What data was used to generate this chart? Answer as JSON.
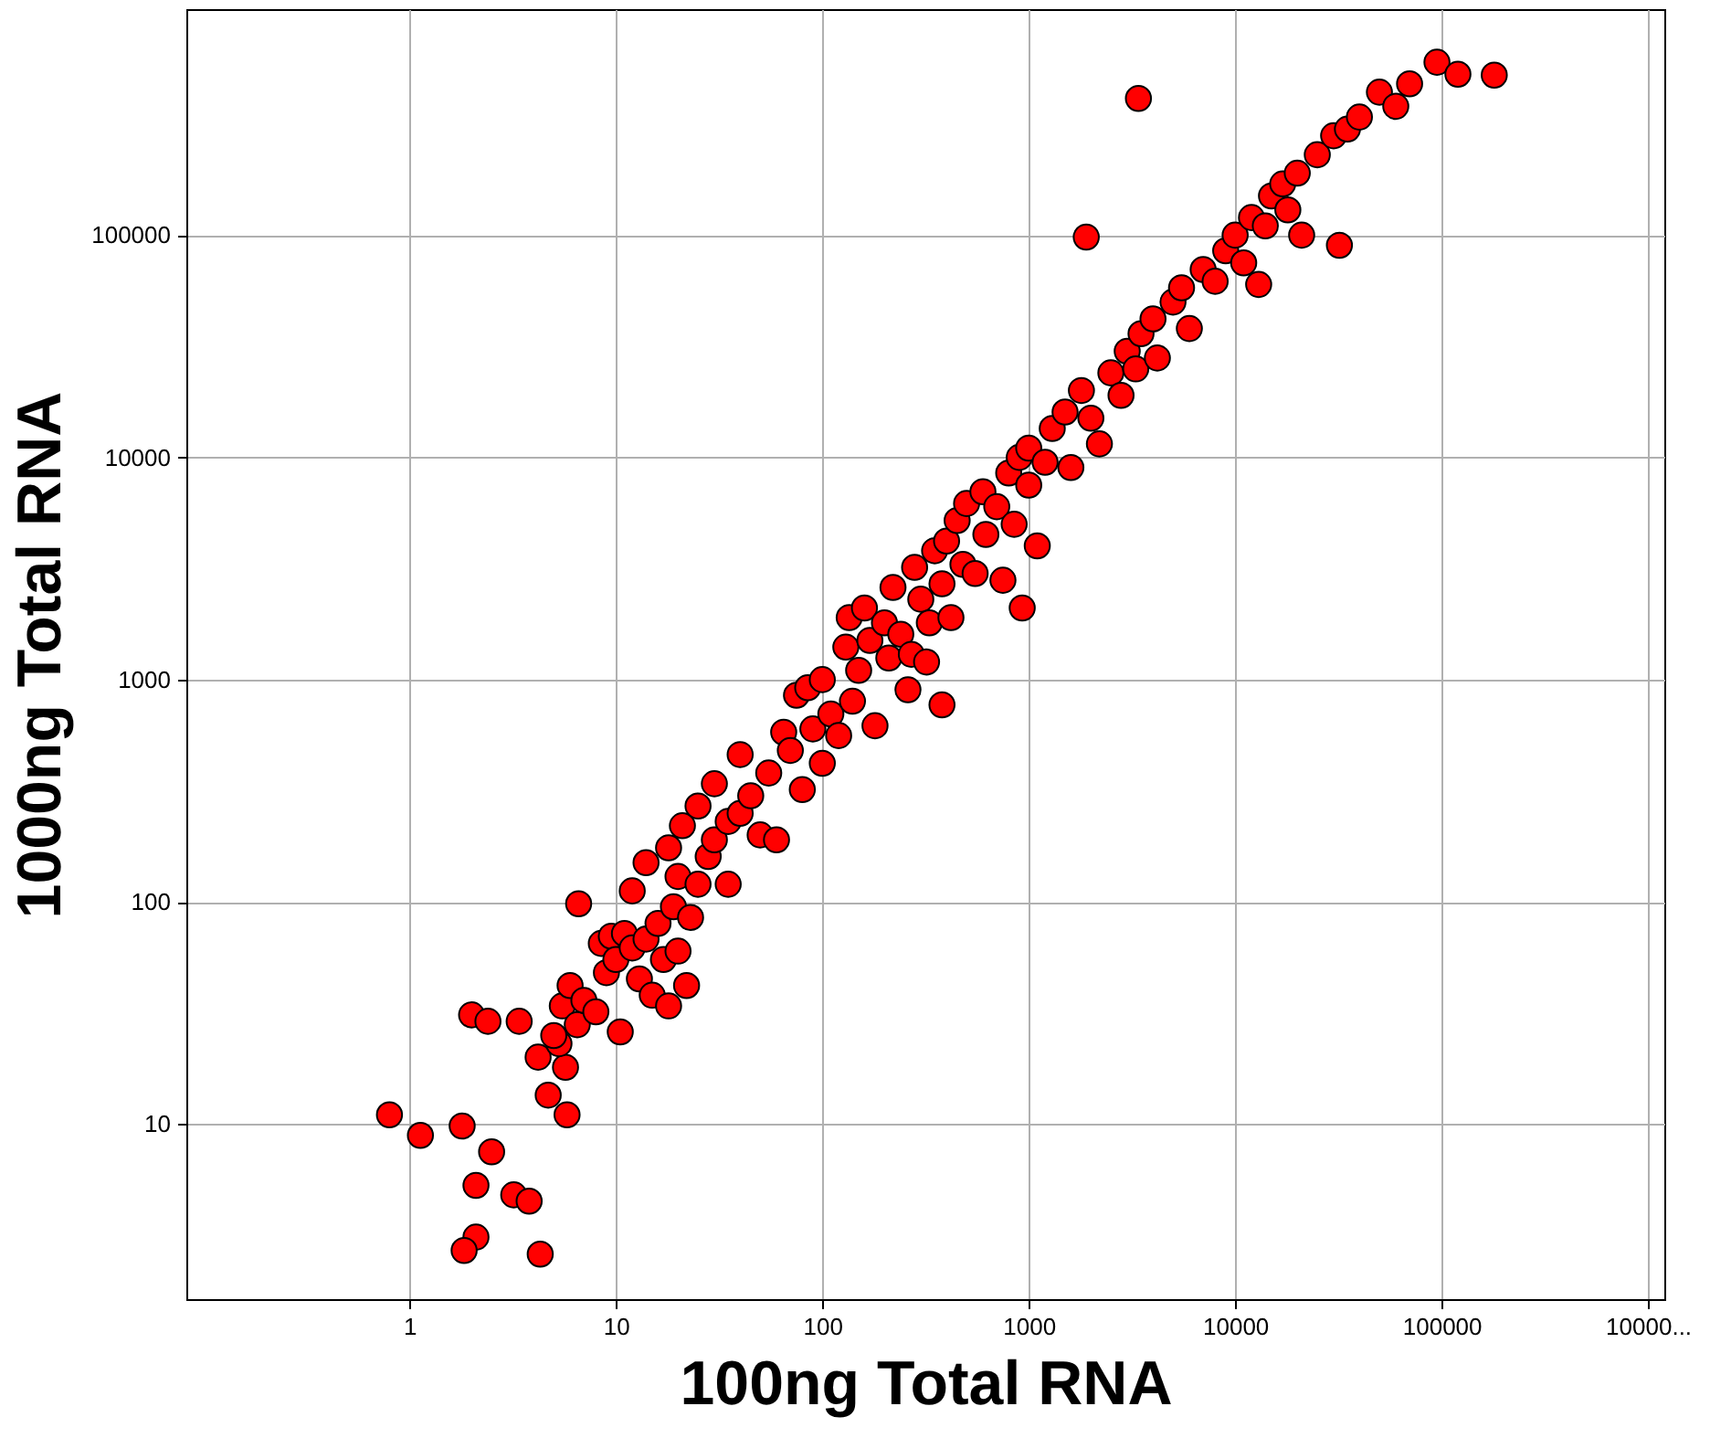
{
  "chart_data": {
    "type": "scatter",
    "xlabel": "100ng Total RNA",
    "ylabel": "1000ng Total RNA",
    "log": "xy",
    "grid": true,
    "marker": "circle",
    "xlim": [
      0.083,
      1200000
    ],
    "ylim": [
      1.63,
      1040000
    ],
    "xticks": [
      1,
      10,
      100,
      1000,
      10000,
      100000,
      {
        "value": 1000000,
        "label": "10000..."
      }
    ],
    "yticks": [
      10,
      100,
      1000,
      10000,
      100000
    ],
    "series": [
      {
        "color": "#ff0000",
        "x": [
          0.8,
          1.13,
          1.8,
          2.1,
          2.1,
          1.84,
          2.5,
          3.2,
          3.8,
          4.3,
          2.0,
          2.4,
          3.4,
          4.2,
          4.7,
          5.8,
          6.6,
          5.7,
          5.3,
          3400,
          1900,
          32000,
          21000,
          13000,
          930,
          380,
          180000,
          95000,
          120000,
          5,
          5.5,
          6,
          6.5,
          7,
          8,
          8.5,
          9,
          9.5,
          10,
          10.5,
          11,
          12,
          12,
          13,
          14,
          14,
          15,
          16,
          17,
          18,
          18,
          19,
          20,
          20,
          21,
          22,
          23,
          25,
          25,
          28,
          30,
          30,
          35,
          35,
          40,
          40,
          45,
          50,
          55,
          60,
          65,
          70,
          75,
          80,
          85,
          90,
          100,
          100,
          110,
          120,
          130,
          135,
          140,
          150,
          160,
          170,
          180,
          200,
          210,
          220,
          240,
          260,
          270,
          280,
          300,
          320,
          330,
          350,
          380,
          400,
          420,
          450,
          480,
          500,
          550,
          600,
          620,
          700,
          750,
          800,
          850,
          900,
          1000,
          1000,
          1100,
          1200,
          1300,
          1500,
          1600,
          1800,
          2000,
          2200,
          2500,
          2800,
          3000,
          3300,
          3500,
          4000,
          4200,
          5000,
          5500,
          6000,
          7000,
          8000,
          9000,
          10000,
          11000,
          12000,
          14000,
          15000,
          17000,
          18000,
          20000,
          25000,
          30000,
          35000,
          40000,
          50000,
          60000,
          70000
        ],
        "values": [
          11,
          8.9,
          9.8,
          5.3,
          3.1,
          2.7,
          7.5,
          4.8,
          4.5,
          2.6,
          31,
          29,
          29,
          20,
          13.5,
          11,
          98,
          18,
          23,
          412000,
          98000,
          90000,
          100000,
          60000,
          2100,
          770,
          525000,
          600000,
          530000,
          25,
          34,
          42,
          28,
          36,
          32,
          65,
          48,
          70,
          55,
          26,
          72,
          62,
          112,
          45,
          150,
          68,
          38,
          80,
          55,
          175,
          34,
          95,
          130,
          60,
          220,
          42,
          85,
          270,
          120,
          160,
          340,
          190,
          230,
          120,
          460,
          250,
          300,
          200,
          380,
          190,
          580,
          480,
          850,
          320,
          920,
          600,
          420,
          1000,
          700,
          560,
          1400,
          1900,
          800,
          1100,
          2100,
          1500,
          620,
          1800,
          1250,
          2600,
          1600,
          900,
          1300,
          3200,
          2300,
          1200,
          1800,
          3800,
          2700,
          4200,
          1900,
          5200,
          3300,
          6200,
          3000,
          7000,
          4500,
          6000,
          2800,
          8500,
          5000,
          10000,
          7500,
          11000,
          4000,
          9500,
          13500,
          16000,
          9000,
          20000,
          15000,
          11500,
          24000,
          19000,
          30000,
          25000,
          36000,
          42000,
          28000,
          50000,
          58000,
          38000,
          70000,
          62000,
          85000,
          100000,
          75000,
          120000,
          110000,
          150000,
          170000,
          130000,
          190000,
          230000,
          280000,
          300000,
          340000,
          440000,
          380000,
          480000
        ]
      }
    ]
  }
}
